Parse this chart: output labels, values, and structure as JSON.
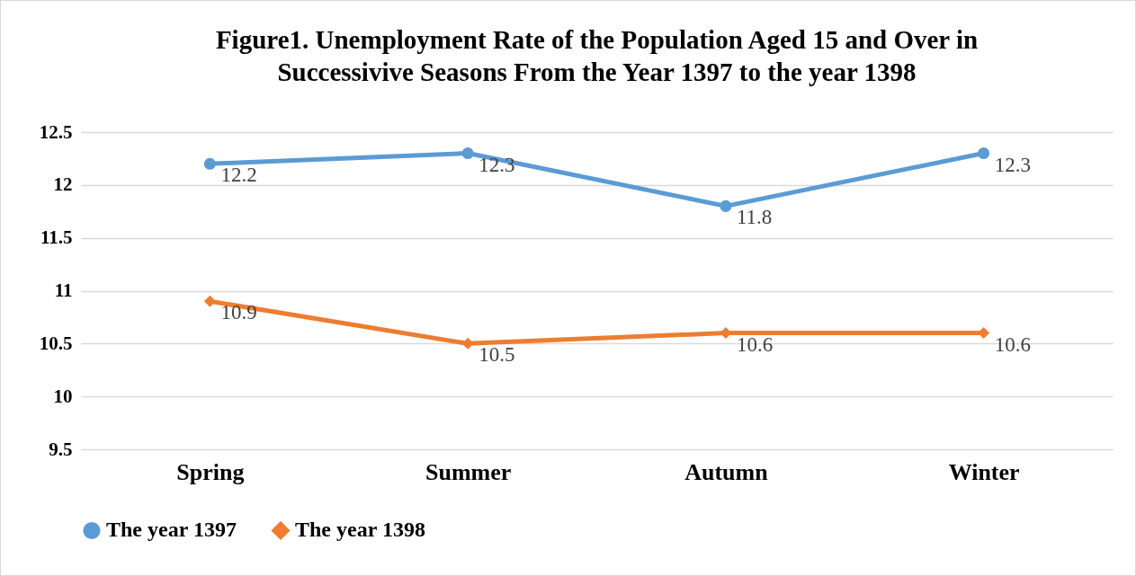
{
  "chart_data": {
    "type": "line",
    "title": "Figure1. Unemployment Rate of the Population Aged 15 and Over in Successivive Seasons From the Year 1397 to the year 1398",
    "categories": [
      "Spring",
      "Summer",
      "Autumn",
      "Winter"
    ],
    "series": [
      {
        "name": "The year 1397",
        "color": "#5b9bd5",
        "marker": "circle",
        "values": [
          12.2,
          12.3,
          11.8,
          12.3
        ]
      },
      {
        "name": "The year 1398",
        "color": "#ed7d31",
        "marker": "diamond",
        "values": [
          10.9,
          10.5,
          10.6,
          10.6
        ]
      }
    ],
    "ylim": [
      9.5,
      12.5
    ],
    "yticks": [
      9.5,
      10,
      10.5,
      11,
      11.5,
      12,
      12.5
    ],
    "grid": "y",
    "legend": "bottom",
    "data_labels": true,
    "line_style": "solid"
  }
}
